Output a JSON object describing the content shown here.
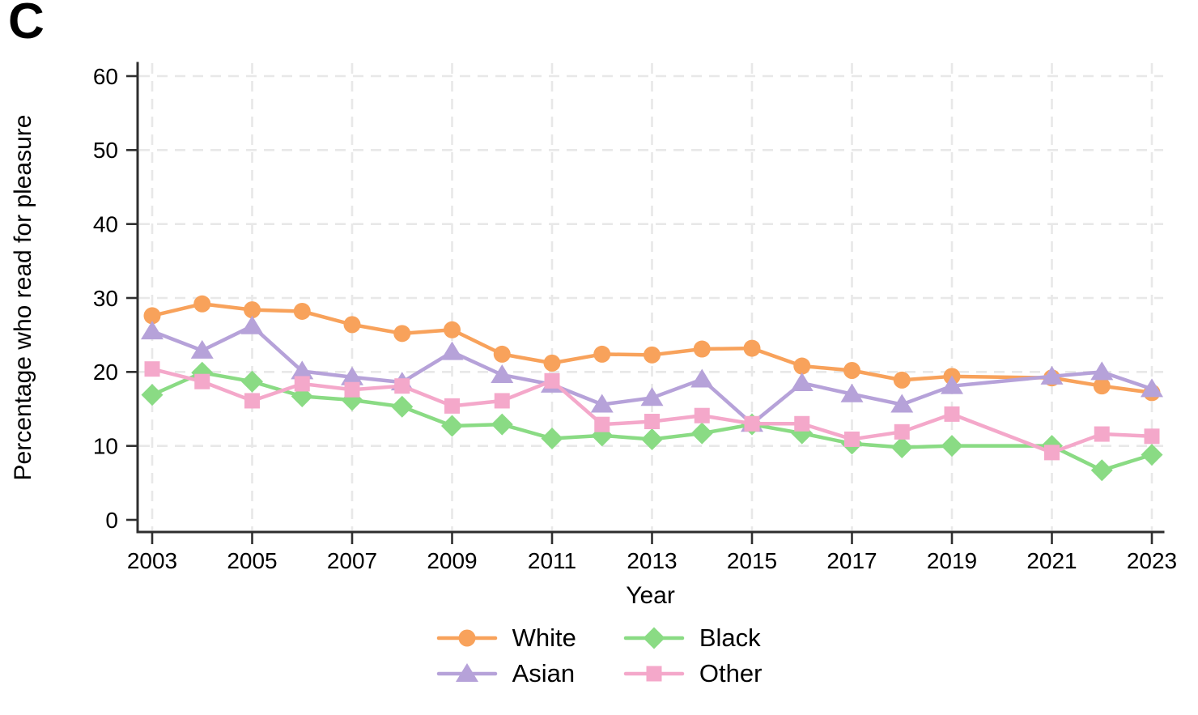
{
  "figure": {
    "panel_label": "C"
  },
  "chart_data": {
    "type": "line",
    "title": "",
    "xlabel": "Year",
    "ylabel": "Percentage who read for pleasure",
    "x": [
      2003,
      2004,
      2005,
      2006,
      2007,
      2008,
      2009,
      2010,
      2011,
      2012,
      2013,
      2014,
      2015,
      2016,
      2017,
      2018,
      2019,
      2020,
      2021,
      2022,
      2023
    ],
    "x_tick_years": [
      2003,
      2005,
      2007,
      2009,
      2011,
      2013,
      2015,
      2017,
      2019,
      2021,
      2023
    ],
    "y_ticks": [
      0,
      10,
      20,
      30,
      40,
      50,
      60
    ],
    "ylim": [
      0,
      62
    ],
    "grid": {
      "horizontal": true,
      "vertical": true,
      "style": "dashed",
      "color": "#E8E8E8"
    },
    "axis_color": "#2e2e2e",
    "missing_year_note": "no data points plotted for 2020; lines connect 2019 to 2021 directly",
    "legend": {
      "position": "bottom-center",
      "layout": "two columns: White/Asian left, Black/Other right"
    },
    "series": [
      {
        "name": "White",
        "marker": "circle",
        "color": "#F8A25B",
        "values": [
          27.6,
          29.2,
          28.4,
          28.2,
          26.4,
          25.2,
          25.7,
          22.4,
          21.2,
          22.4,
          22.3,
          23.1,
          23.2,
          20.8,
          20.2,
          18.9,
          19.4,
          null,
          19.2,
          18.1,
          17.2
        ]
      },
      {
        "name": "Asian",
        "marker": "triangle",
        "color": "#B6A2D9",
        "values": [
          25.5,
          22.9,
          26.2,
          20.1,
          19.3,
          18.6,
          22.7,
          19.6,
          18.3,
          15.6,
          16.5,
          19.0,
          13.0,
          18.5,
          17.0,
          15.6,
          18.1,
          null,
          19.4,
          20.0,
          17.7
        ]
      },
      {
        "name": "Black",
        "marker": "diamond",
        "color": "#8ADB84",
        "values": [
          16.9,
          19.9,
          18.7,
          16.7,
          16.2,
          15.3,
          12.7,
          12.9,
          11.0,
          11.4,
          10.9,
          11.7,
          12.9,
          11.7,
          10.3,
          9.8,
          10.0,
          null,
          10.0,
          6.7,
          8.8
        ]
      },
      {
        "name": "Other",
        "marker": "square",
        "color": "#F4A8CA",
        "values": [
          20.4,
          18.7,
          16.1,
          18.4,
          17.6,
          18.1,
          15.4,
          16.1,
          18.8,
          12.9,
          13.3,
          14.1,
          13.0,
          13.0,
          10.9,
          11.9,
          14.3,
          null,
          9.1,
          11.6,
          11.3
        ]
      }
    ]
  }
}
